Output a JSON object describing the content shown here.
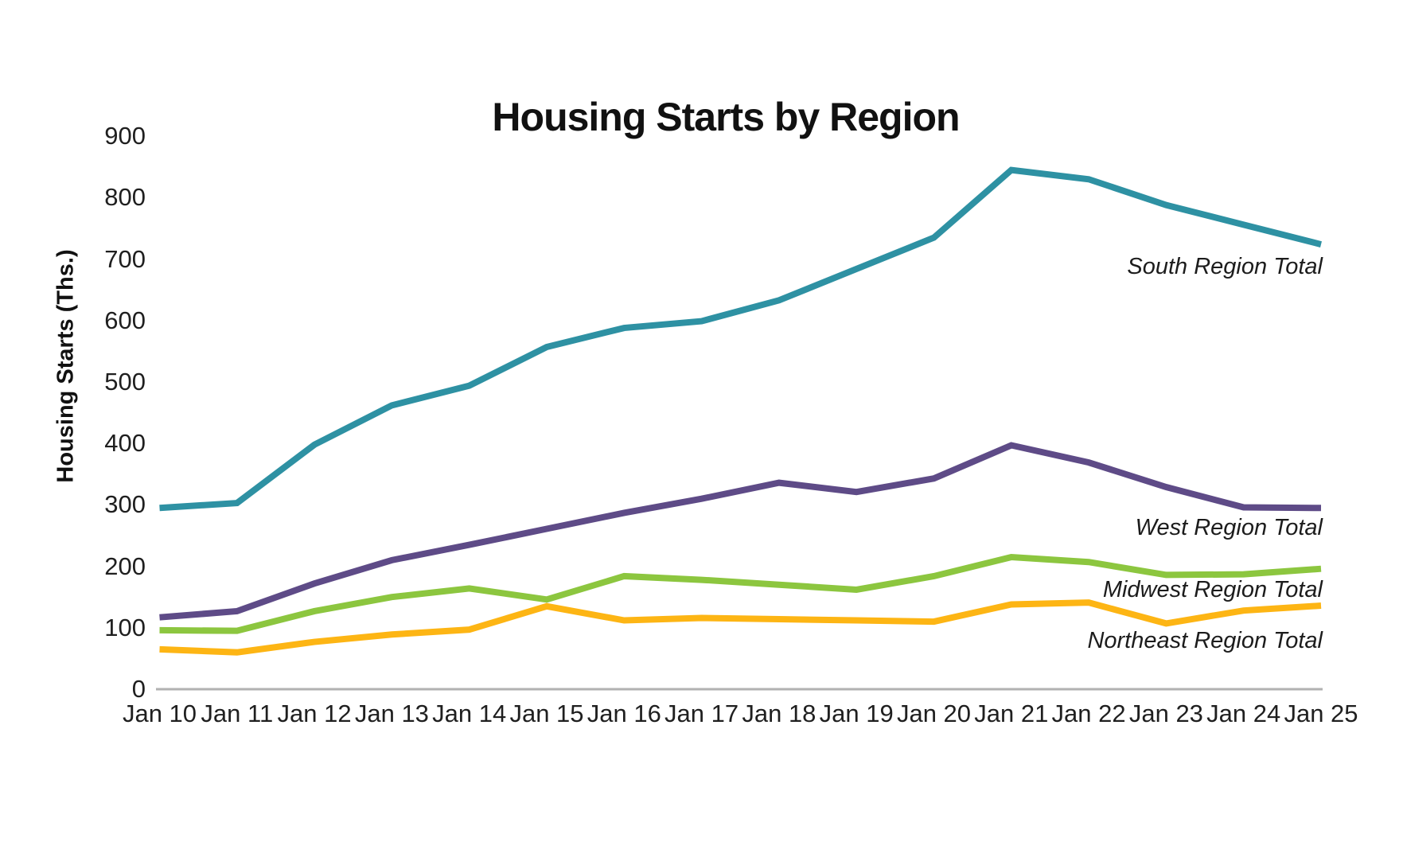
{
  "chart_data": {
    "type": "line",
    "title": "Housing Starts by Region",
    "ylabel": "Housing Starts (Ths.)",
    "xlabel": "",
    "ylim": [
      0,
      900
    ],
    "ytick_step": 100,
    "grid": false,
    "legend_position": "right-end-of-line",
    "categories": [
      "Jan 10",
      "Jan 11",
      "Jan 12",
      "Jan 13",
      "Jan 14",
      "Jan 15",
      "Jan 16",
      "Jan 17",
      "Jan 18",
      "Jan 19",
      "Jan 20",
      "Jan 21",
      "Jan 22",
      "Jan 23",
      "Jan 24",
      "Jan 25"
    ],
    "series": [
      {
        "name": "South Region Total",
        "color": "#2E91A3",
        "values": [
          295,
          303,
          398,
          462,
          494,
          557,
          588,
          599,
          633,
          684,
          735,
          845,
          830,
          788,
          756,
          724
        ]
      },
      {
        "name": "West Region Total",
        "color": "#5E4B87",
        "values": [
          117,
          127,
          172,
          210,
          235,
          261,
          287,
          310,
          336,
          321,
          343,
          397,
          369,
          329,
          296,
          295
        ]
      },
      {
        "name": "Midwest Region Total",
        "color": "#8CC63F",
        "values": [
          96,
          95,
          127,
          150,
          164,
          146,
          184,
          178,
          170,
          162,
          184,
          215,
          207,
          186,
          187,
          196
        ]
      },
      {
        "name": "Northeast Region Total",
        "color": "#FDB514",
        "values": [
          65,
          60,
          77,
          89,
          97,
          135,
          112,
          116,
          114,
          112,
          110,
          138,
          141,
          107,
          128,
          136
        ]
      }
    ]
  },
  "colors": {
    "background": "#FFFFFF",
    "text": "#1F1F1F",
    "axis_line": "#B2B2B2"
  }
}
